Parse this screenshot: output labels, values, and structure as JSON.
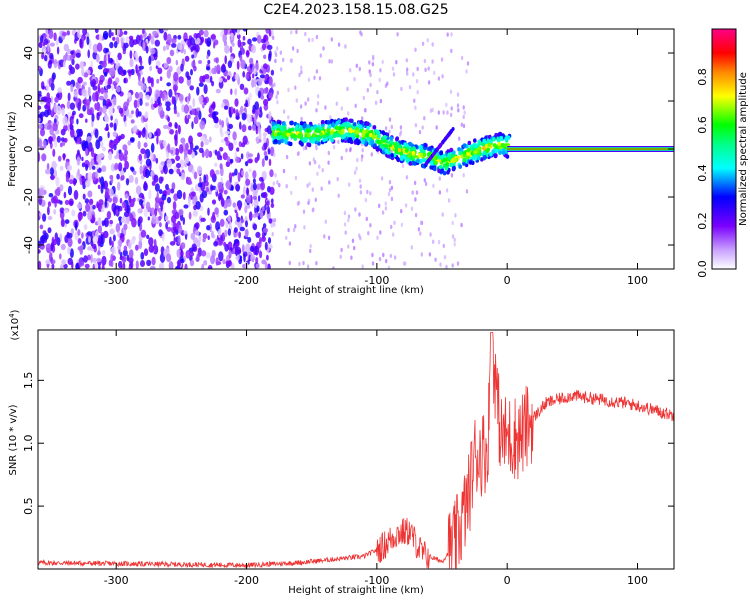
{
  "title": "C2E4.2023.158.15.08.G25",
  "chart_data": [
    {
      "type": "heatmap",
      "title": "C2E4.2023.158.15.08.G25",
      "xlabel": "Height of straight line (km)",
      "ylabel": "Frequency (Hz)",
      "xlim": [
        -360,
        128
      ],
      "ylim": [
        -50,
        50
      ],
      "x_ticks": [
        -300,
        -200,
        -100,
        0,
        100
      ],
      "y_ticks": [
        -40,
        -20,
        0,
        20,
        40
      ],
      "colorbar": {
        "label": "Normalized spectral amplitude",
        "range": [
          0,
          1
        ],
        "ticks": [
          "0.0",
          "0.2",
          "0.4",
          "0.6",
          "0.8"
        ],
        "colors": [
          "#ffffff",
          "#7a00ff",
          "#0000ff",
          "#00ffff",
          "#00ff00",
          "#ffff00",
          "#ff8800",
          "#ff0000",
          "#ff0088"
        ]
      },
      "features": {
        "noise_region_x": [
          -360,
          -180
        ],
        "noise_amplitude": 0.25,
        "doppler_track": [
          {
            "x": -180,
            "f": 7
          },
          {
            "x": -150,
            "f": 6
          },
          {
            "x": -125,
            "f": 8
          },
          {
            "x": -105,
            "f": 6
          },
          {
            "x": -90,
            "f": 1
          },
          {
            "x": -75,
            "f": -2
          },
          {
            "x": -60,
            "f": -3
          },
          {
            "x": -48,
            "f": -6
          },
          {
            "x": -35,
            "f": -3
          },
          {
            "x": -20,
            "f": 0
          },
          {
            "x": -5,
            "f": 2
          },
          {
            "x": 2,
            "f": 1
          }
        ],
        "steady_line_x": [
          0,
          128
        ],
        "steady_line_f": 0
      }
    },
    {
      "type": "line",
      "xlabel": "Height of straight line (km)",
      "ylabel": "SNR (10 * v/v)",
      "y_scale_label": "(x10",
      "y_scale_exponent": "4",
      "xlim": [
        -360,
        128
      ],
      "ylim": [
        0,
        1.9
      ],
      "x_ticks": [
        -300,
        -200,
        -100,
        0,
        100
      ],
      "y_ticks": [
        "0.5",
        "1.0",
        "1.5"
      ],
      "y_tick_values": [
        0.5,
        1.0,
        1.5
      ],
      "line_color": "#ee3333",
      "series_profile": [
        {
          "x": -360,
          "y": 0.05
        },
        {
          "x": -200,
          "y": 0.03
        },
        {
          "x": -160,
          "y": 0.05
        },
        {
          "x": -130,
          "y": 0.08
        },
        {
          "x": -110,
          "y": 0.1
        },
        {
          "x": -95,
          "y": 0.18
        },
        {
          "x": -85,
          "y": 0.28
        },
        {
          "x": -75,
          "y": 0.3
        },
        {
          "x": -65,
          "y": 0.12
        },
        {
          "x": -50,
          "y": 0.06
        },
        {
          "x": -40,
          "y": 0.2
        },
        {
          "x": -30,
          "y": 0.55
        },
        {
          "x": -25,
          "y": 0.9
        },
        {
          "x": -15,
          "y": 0.95
        },
        {
          "x": -12,
          "y": 1.85
        },
        {
          "x": -5,
          "y": 1.05
        },
        {
          "x": 10,
          "y": 1.05
        },
        {
          "x": 20,
          "y": 1.2
        },
        {
          "x": 30,
          "y": 1.32
        },
        {
          "x": 50,
          "y": 1.38
        },
        {
          "x": 70,
          "y": 1.35
        },
        {
          "x": 90,
          "y": 1.32
        },
        {
          "x": 100,
          "y": 1.3
        },
        {
          "x": 128,
          "y": 1.22
        }
      ]
    }
  ]
}
